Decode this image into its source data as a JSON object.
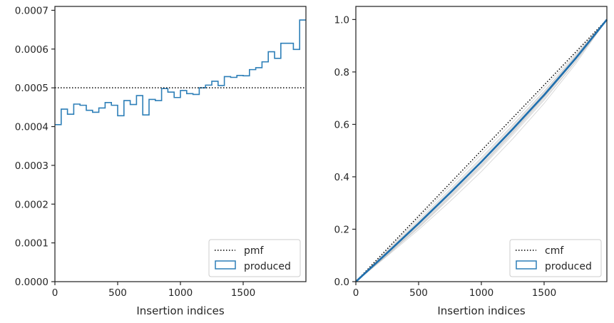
{
  "chart_data": [
    {
      "type": "histogram",
      "xlabel": "Insertion indices",
      "ylabel": "",
      "xlim": [
        0,
        2000
      ],
      "ylim": [
        0,
        0.00071
      ],
      "x_ticks": [
        0,
        500,
        1000,
        1500
      ],
      "x_tick_labels": [
        "0",
        "500",
        "1000",
        "1500"
      ],
      "y_ticks": [
        0,
        0.0001,
        0.0002,
        0.0003,
        0.0004,
        0.0005,
        0.0006,
        0.0007
      ],
      "y_tick_labels": [
        "0.0000",
        "0.0001",
        "0.0002",
        "0.0003",
        "0.0004",
        "0.0005",
        "0.0006",
        "0.0007"
      ],
      "grid": false,
      "legend_position": "bottom-right",
      "legend": [
        {
          "label": "pmf",
          "style": "dotted-line",
          "color": "#000000"
        },
        {
          "label": "produced",
          "style": "step-outline",
          "color": "#2d7fb8"
        }
      ],
      "pmf_value": 0.0005,
      "series": [
        {
          "name": "produced",
          "color": "#2d7fb8",
          "bin_edges": [
            0,
            50,
            100,
            150,
            200,
            250,
            300,
            350,
            400,
            450,
            500,
            550,
            600,
            650,
            700,
            750,
            800,
            850,
            900,
            950,
            1000,
            1050,
            1100,
            1150,
            1200,
            1250,
            1300,
            1350,
            1400,
            1450,
            1500,
            1550,
            1600,
            1650,
            1700,
            1750,
            1800,
            1850,
            1900,
            1950,
            2000
          ],
          "values": [
            0.000405,
            0.000445,
            0.000432,
            0.000458,
            0.000455,
            0.000442,
            0.000437,
            0.000448,
            0.000462,
            0.000455,
            0.000428,
            0.000467,
            0.000457,
            0.00048,
            0.00043,
            0.00047,
            0.000467,
            0.000498,
            0.000489,
            0.000475,
            0.000493,
            0.000485,
            0.000483,
            0.0005,
            0.000507,
            0.000517,
            0.000506,
            0.000529,
            0.000527,
            0.000532,
            0.000531,
            0.000547,
            0.000552,
            0.000567,
            0.000593,
            0.000576,
            0.000615,
            0.000615,
            0.000599,
            0.000675
          ]
        }
      ]
    },
    {
      "type": "line",
      "xlabel": "Insertion indices",
      "ylabel": "",
      "xlim": [
        0,
        2000
      ],
      "ylim": [
        0,
        1.05
      ],
      "x_ticks": [
        0,
        500,
        1000,
        1500
      ],
      "x_tick_labels": [
        "0",
        "500",
        "1000",
        "1500"
      ],
      "y_ticks": [
        0,
        0.2,
        0.4,
        0.6,
        0.8,
        1.0
      ],
      "y_tick_labels": [
        "0.0",
        "0.2",
        "0.4",
        "0.6",
        "0.8",
        "1.0"
      ],
      "grid": false,
      "legend_position": "bottom-right",
      "legend": [
        {
          "label": "cmf",
          "style": "dotted-line",
          "color": "#000000"
        },
        {
          "label": "produced",
          "style": "box-outline",
          "color": "#2d7fb8"
        }
      ],
      "cmf_line": {
        "x": [
          0,
          2000
        ],
        "y": [
          0,
          1
        ]
      },
      "series": [
        {
          "name": "produced",
          "color": "#1f6fae",
          "x": [
            0,
            250,
            500,
            750,
            1000,
            1250,
            1500,
            1750,
            2000
          ],
          "y": [
            0,
            0.11,
            0.222,
            0.338,
            0.457,
            0.582,
            0.712,
            0.851,
            1.0
          ]
        }
      ],
      "bootstrap_curves": {
        "color": "#b5b5b5",
        "x": [
          0,
          250,
          500,
          750,
          1000,
          1250,
          1500,
          1750,
          2000
        ],
        "curves": [
          [
            0,
            0.102,
            0.205,
            0.318,
            0.435,
            0.56,
            0.692,
            0.838,
            1.0
          ],
          [
            0,
            0.107,
            0.215,
            0.33,
            0.448,
            0.573,
            0.705,
            0.846,
            1.0
          ],
          [
            0,
            0.112,
            0.226,
            0.342,
            0.462,
            0.588,
            0.718,
            0.856,
            1.0
          ],
          [
            0,
            0.116,
            0.234,
            0.352,
            0.473,
            0.598,
            0.727,
            0.862,
            1.0
          ],
          [
            0,
            0.12,
            0.243,
            0.363,
            0.486,
            0.61,
            0.738,
            0.868,
            1.0
          ],
          [
            0,
            0.098,
            0.198,
            0.306,
            0.42,
            0.545,
            0.68,
            0.83,
            1.0
          ],
          [
            0,
            0.11,
            0.22,
            0.336,
            0.455,
            0.582,
            0.714,
            0.852,
            1.0
          ],
          [
            0,
            0.105,
            0.211,
            0.326,
            0.444,
            0.57,
            0.703,
            0.847,
            1.0
          ],
          [
            0,
            0.113,
            0.229,
            0.347,
            0.468,
            0.594,
            0.723,
            0.86,
            1.0
          ],
          [
            0,
            0.101,
            0.208,
            0.322,
            0.44,
            0.566,
            0.697,
            0.84,
            1.0
          ]
        ]
      }
    }
  ]
}
